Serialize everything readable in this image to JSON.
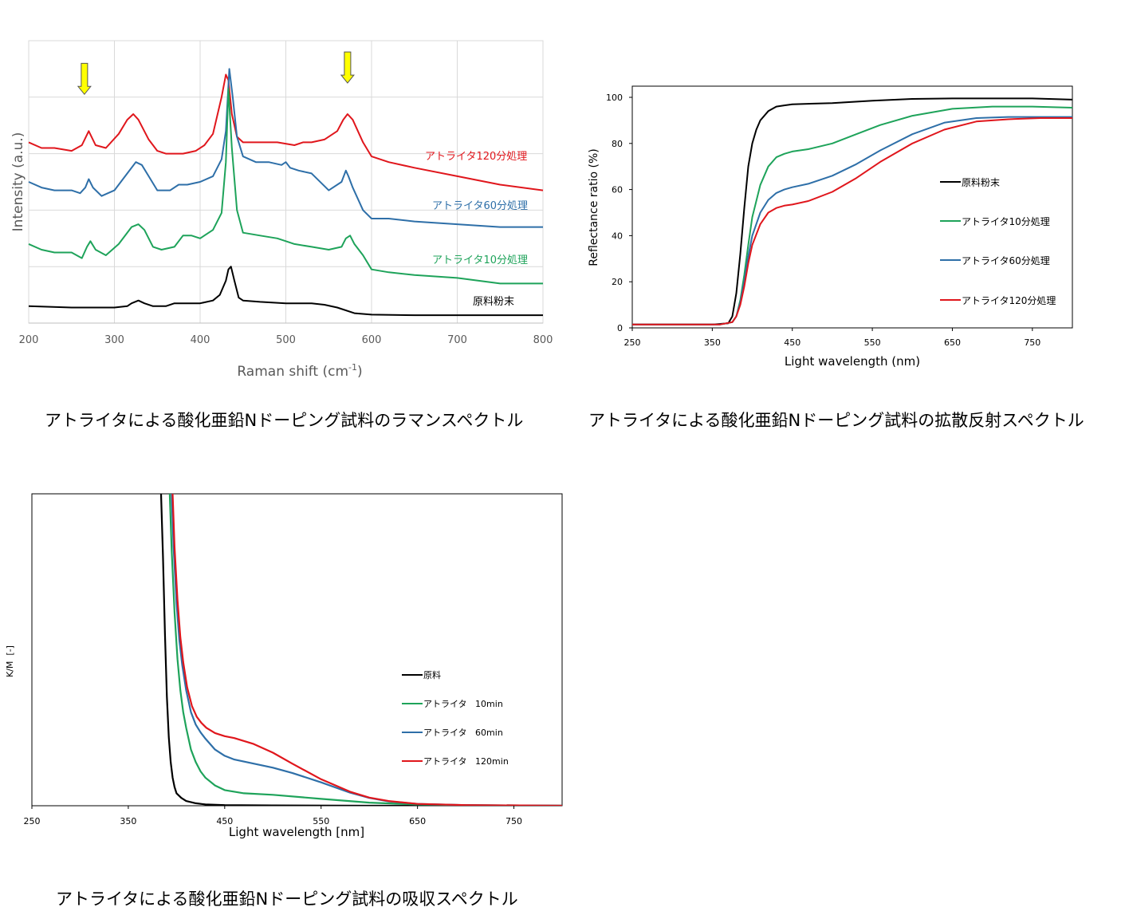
{
  "captions": {
    "raman": "アトライタによる酸化亜鉛Nドーピング試料のラマンスペクトル",
    "reflect": "アトライタによる酸化亜鉛Nドーピング試料の拡散反射スペクトル",
    "absorb": "アトライタによる酸化亜鉛Nドーピング試料の吸収スペクトル"
  },
  "chart_data": [
    {
      "id": "raman",
      "type": "line",
      "title": "",
      "xlabel": "Raman shift (cm-1)",
      "xlabel_main": "Raman shift   (cm",
      "xlabel_sup": "-1",
      "xlabel_end": ")",
      "ylabel": "Intensity   (a.u.)",
      "xlim": [
        200,
        800
      ],
      "ylim": [
        0,
        100
      ],
      "xticks": [
        200,
        300,
        400,
        500,
        600,
        700,
        800
      ],
      "grid": true,
      "arrows_at_x": [
        265,
        572
      ],
      "arrow_color": "#ffff00",
      "series": [
        {
          "name": "アトライタ120分処理",
          "color": "#e0161c",
          "x": [
            200,
            215,
            230,
            250,
            262,
            270,
            278,
            290,
            305,
            315,
            322,
            328,
            340,
            350,
            360,
            380,
            395,
            405,
            415,
            425,
            430,
            433,
            437,
            443,
            450,
            470,
            490,
            510,
            520,
            530,
            545,
            560,
            567,
            572,
            578,
            590,
            600,
            620,
            650,
            700,
            750,
            800
          ],
          "y": [
            64,
            62,
            62,
            61,
            63,
            68,
            63,
            62,
            67,
            72,
            74,
            72,
            65,
            61,
            60,
            60,
            61,
            63,
            67,
            80,
            88,
            86,
            74,
            66,
            64,
            64,
            64,
            63,
            64,
            64,
            65,
            68,
            72,
            74,
            72,
            64,
            59,
            57,
            55,
            52,
            49,
            47
          ]
        },
        {
          "name": "アトライタ60分処理",
          "color": "#2e6fa8",
          "x": [
            200,
            215,
            230,
            250,
            260,
            266,
            270,
            275,
            285,
            300,
            315,
            325,
            332,
            340,
            350,
            365,
            375,
            385,
            400,
            415,
            425,
            430,
            434,
            438,
            443,
            450,
            465,
            480,
            495,
            500,
            505,
            515,
            530,
            550,
            565,
            570,
            573,
            578,
            590,
            600,
            620,
            650,
            700,
            750,
            800
          ],
          "y": [
            50,
            48,
            47,
            47,
            46,
            48,
            51,
            48,
            45,
            47,
            53,
            57,
            56,
            52,
            47,
            47,
            49,
            49,
            50,
            52,
            58,
            68,
            90,
            80,
            66,
            59,
            57,
            57,
            56,
            57,
            55,
            54,
            53,
            47,
            50,
            54,
            52,
            48,
            40,
            37,
            37,
            36,
            35,
            34,
            34
          ]
        },
        {
          "name": "アトライタ10分処理",
          "color": "#1ea35a",
          "x": [
            200,
            215,
            230,
            250,
            262,
            268,
            272,
            278,
            290,
            305,
            320,
            328,
            335,
            345,
            355,
            370,
            380,
            390,
            400,
            415,
            425,
            430,
            433,
            437,
            443,
            450,
            470,
            490,
            500,
            510,
            530,
            550,
            565,
            570,
            575,
            580,
            590,
            600,
            620,
            650,
            700,
            750,
            800
          ],
          "y": [
            28,
            26,
            25,
            25,
            23,
            27,
            29,
            26,
            24,
            28,
            34,
            35,
            33,
            27,
            26,
            27,
            31,
            31,
            30,
            33,
            39,
            57,
            83,
            62,
            40,
            32,
            31,
            30,
            29,
            28,
            27,
            26,
            27,
            30,
            31,
            28,
            24,
            19,
            18,
            17,
            16,
            14,
            14
          ]
        },
        {
          "name": "原料粉末",
          "color": "#000000",
          "x": [
            200,
            250,
            300,
            315,
            320,
            328,
            335,
            345,
            360,
            370,
            380,
            400,
            415,
            423,
            430,
            433,
            436,
            440,
            445,
            450,
            470,
            500,
            530,
            545,
            560,
            580,
            600,
            650,
            700,
            750,
            800
          ],
          "y": [
            6,
            5.5,
            5.5,
            6,
            7,
            8,
            7,
            6,
            6,
            7,
            7,
            7,
            8,
            10,
            15,
            19,
            20,
            15,
            9,
            8,
            7.5,
            7,
            7,
            6.5,
            5.5,
            3.5,
            3,
            2.8,
            2.8,
            2.8,
            2.8
          ]
        }
      ]
    },
    {
      "id": "reflect",
      "type": "line",
      "title": "",
      "xlabel": "Light wavelength (nm)",
      "ylabel": "Reflectance ratio (%)",
      "xlim": [
        250,
        800
      ],
      "ylim": [
        0,
        105
      ],
      "xticks": [
        250,
        350,
        450,
        550,
        650,
        750
      ],
      "yticks": [
        0,
        20,
        40,
        60,
        80,
        100
      ],
      "grid": false,
      "legend": "right",
      "series": [
        {
          "name": "原料粉末",
          "color": "#000000",
          "x": [
            250,
            350,
            370,
            375,
            380,
            385,
            390,
            395,
            400,
            405,
            410,
            420,
            430,
            440,
            450,
            500,
            550,
            600,
            650,
            700,
            750,
            800
          ],
          "y": [
            1.5,
            1.5,
            2,
            5,
            15,
            32,
            52,
            70,
            80,
            86,
            90,
            94,
            96,
            96.5,
            97,
            97.5,
            98.5,
            99.3,
            99.5,
            99.5,
            99.5,
            99
          ],
          "linewidth": 2
        },
        {
          "name": "アトライタ10分処理",
          "color": "#1ea35a",
          "x": [
            250,
            360,
            375,
            380,
            385,
            390,
            395,
            400,
            410,
            420,
            430,
            440,
            450,
            470,
            500,
            530,
            560,
            600,
            650,
            700,
            750,
            800
          ],
          "y": [
            1.5,
            1.5,
            2.5,
            5,
            12,
            23,
            36,
            48,
            62,
            70,
            74,
            75.5,
            76.5,
            77.5,
            80,
            84,
            88,
            92,
            95,
            96,
            96,
            95.5
          ]
        },
        {
          "name": "アトライタ60分処理",
          "color": "#2e6fa8",
          "x": [
            250,
            360,
            375,
            380,
            385,
            390,
            395,
            400,
            410,
            420,
            430,
            440,
            450,
            470,
            500,
            530,
            560,
            600,
            640,
            680,
            720,
            760,
            800
          ],
          "y": [
            1.5,
            1.5,
            2.5,
            5,
            11,
            20,
            31,
            40,
            50,
            55.5,
            58.5,
            60,
            61,
            62.5,
            66,
            71,
            77,
            84,
            89,
            91,
            91.5,
            91.5,
            91.5
          ]
        },
        {
          "name": "アトライタ120分処理",
          "color": "#e0161c",
          "x": [
            250,
            360,
            375,
            380,
            385,
            390,
            395,
            400,
            410,
            420,
            430,
            440,
            450,
            470,
            500,
            530,
            560,
            600,
            640,
            680,
            720,
            760,
            800
          ],
          "y": [
            1.5,
            1.5,
            2.5,
            5,
            10,
            18,
            28,
            36,
            45,
            50,
            52,
            53,
            53.5,
            55,
            59,
            65,
            72,
            80,
            86,
            89.5,
            90.5,
            91,
            91
          ]
        }
      ]
    },
    {
      "id": "absorb",
      "type": "line",
      "title": "",
      "xlabel": "Light wavelength [nm]",
      "ylabel": "K/M  [-]",
      "xlim": [
        250,
        800
      ],
      "ylim": [
        0,
        100
      ],
      "xticks": [
        250,
        350,
        450,
        550,
        650,
        750
      ],
      "grid": false,
      "legend": "right",
      "series": [
        {
          "name": "原料",
          "color": "#000000",
          "x": [
            384,
            386,
            388,
            390,
            392,
            394,
            396,
            398,
            400,
            405,
            410,
            420,
            430,
            450,
            500,
            600,
            700,
            800
          ],
          "y": [
            100,
            80,
            55,
            35,
            22,
            14,
            9,
            6,
            4,
            2.5,
            1.5,
            0.8,
            0.4,
            0.2,
            0.1,
            0,
            0,
            0
          ]
        },
        {
          "name": "アトライタ   10min",
          "color": "#1ea35a",
          "x": [
            393,
            395,
            398,
            401,
            404,
            407,
            410,
            415,
            420,
            425,
            430,
            440,
            450,
            470,
            500,
            550,
            600,
            650,
            700,
            800
          ],
          "y": [
            100,
            82,
            62,
            47,
            37,
            30,
            25,
            18,
            14,
            11,
            9,
            6.5,
            5,
            4,
            3.5,
            2.2,
            1,
            0.4,
            0.2,
            0
          ]
        },
        {
          "name": "アトライタ   60min",
          "color": "#2e6fa8",
          "x": [
            395,
            397,
            400,
            403,
            406,
            410,
            415,
            420,
            425,
            430,
            440,
            450,
            460,
            480,
            500,
            520,
            550,
            580,
            600,
            620,
            650,
            700,
            800
          ],
          "y": [
            100,
            83,
            65,
            53,
            45,
            37,
            30,
            26,
            23.5,
            21.5,
            18,
            16,
            14.8,
            13.5,
            12.2,
            10.5,
            7.5,
            4.2,
            2.5,
            1.4,
            0.6,
            0.2,
            0
          ]
        },
        {
          "name": "アトライタ   120min",
          "color": "#e0161c",
          "x": [
            396,
            398,
            401,
            404,
            407,
            411,
            416,
            421,
            426,
            431,
            440,
            450,
            460,
            480,
            500,
            520,
            550,
            580,
            600,
            620,
            650,
            700,
            800
          ],
          "y": [
            100,
            83,
            66,
            54,
            46,
            38,
            32,
            28.5,
            26.5,
            25,
            23.3,
            22.3,
            21.7,
            19.8,
            17,
            13.5,
            8.5,
            4.5,
            2.6,
            1.5,
            0.6,
            0.2,
            0
          ]
        }
      ]
    }
  ]
}
